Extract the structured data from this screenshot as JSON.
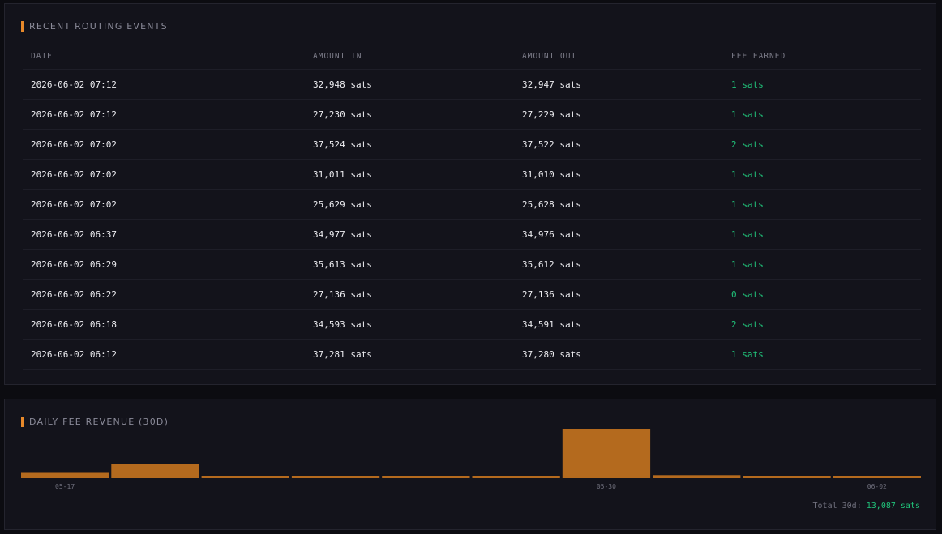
{
  "events": {
    "title": "RECENT ROUTING EVENTS",
    "columns": [
      "DATE",
      "AMOUNT IN",
      "AMOUNT OUT",
      "FEE EARNED"
    ],
    "rows": [
      [
        "2026-06-02 07:12",
        "32,948 sats",
        "32,947 sats",
        "1 sats"
      ],
      [
        "2026-06-02 07:12",
        "27,230 sats",
        "27,229 sats",
        "1 sats"
      ],
      [
        "2026-06-02 07:02",
        "37,524 sats",
        "37,522 sats",
        "2 sats"
      ],
      [
        "2026-06-02 07:02",
        "31,011 sats",
        "31,010 sats",
        "1 sats"
      ],
      [
        "2026-06-02 07:02",
        "25,629 sats",
        "25,628 sats",
        "1 sats"
      ],
      [
        "2026-06-02 06:37",
        "34,977 sats",
        "34,976 sats",
        "1 sats"
      ],
      [
        "2026-06-02 06:29",
        "35,613 sats",
        "35,612 sats",
        "1 sats"
      ],
      [
        "2026-06-02 06:22",
        "27,136 sats",
        "27,136 sats",
        "0 sats"
      ],
      [
        "2026-06-02 06:18",
        "34,593 sats",
        "34,591 sats",
        "2 sats"
      ],
      [
        "2026-06-02 06:12",
        "37,281 sats",
        "37,280 sats",
        "1 sats"
      ]
    ]
  },
  "fees": {
    "title": "DAILY FEE REVENUE (30D)",
    "total_label": "Total 30d:",
    "total_value": "13,087 sats"
  },
  "chart_data": {
    "type": "bar",
    "title": "DAILY FEE REVENUE (30D)",
    "categories": [
      "05-17",
      "",
      "",
      "",
      "",
      "",
      "05-30",
      "",
      "",
      "06-02"
    ],
    "tick_labels": [
      "05-17",
      "05-30",
      "06-02"
    ],
    "values": [
      700,
      1900,
      200,
      300,
      200,
      200,
      6500,
      400,
      200,
      200
    ],
    "ylim": [
      0,
      6500
    ],
    "grid": false,
    "color": "#b46a1e"
  }
}
